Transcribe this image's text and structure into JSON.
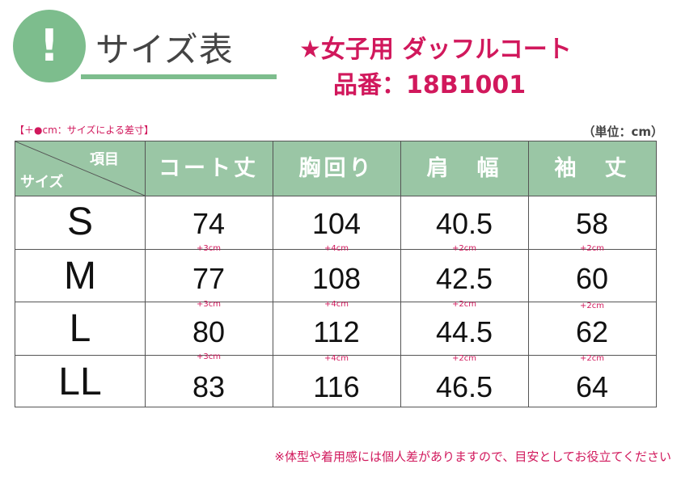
{
  "header": {
    "badge": "!",
    "title": "サイズ表",
    "product_name": "★女子用 ダッフルコート",
    "product_code": "品番：18B1001"
  },
  "legend": "【＋●cm：サイズによる差寸】",
  "unit": "（単位：cm）",
  "table": {
    "corner_top": "項目",
    "corner_bottom": "サイズ",
    "columns": [
      "コート丈",
      "胸回り",
      "肩　幅",
      "袖　丈"
    ],
    "rows": [
      {
        "size": "S",
        "values": [
          "74",
          "104",
          "40.5",
          "58"
        ]
      },
      {
        "size": "M",
        "values": [
          "77",
          "108",
          "42.5",
          "60"
        ]
      },
      {
        "size": "L",
        "values": [
          "80",
          "112",
          "44.5",
          "62"
        ]
      },
      {
        "size": "LL",
        "values": [
          "83",
          "116",
          "46.5",
          "64"
        ]
      }
    ],
    "grades": [
      [
        "+3cm",
        "+4cm",
        "+2cm",
        "+2cm"
      ],
      [
        "+3cm",
        "+4cm",
        "+2cm",
        "+2cm"
      ],
      [
        "+3cm",
        "+4cm",
        "+2cm",
        "+2cm"
      ]
    ]
  },
  "footnote": "※体型や着用感には個人差がありますので、目安としてお役立てください",
  "colors": {
    "accent_green": "#7dbd8d",
    "header_green": "#9ac6a5",
    "accent_pink": "#d1185c"
  }
}
